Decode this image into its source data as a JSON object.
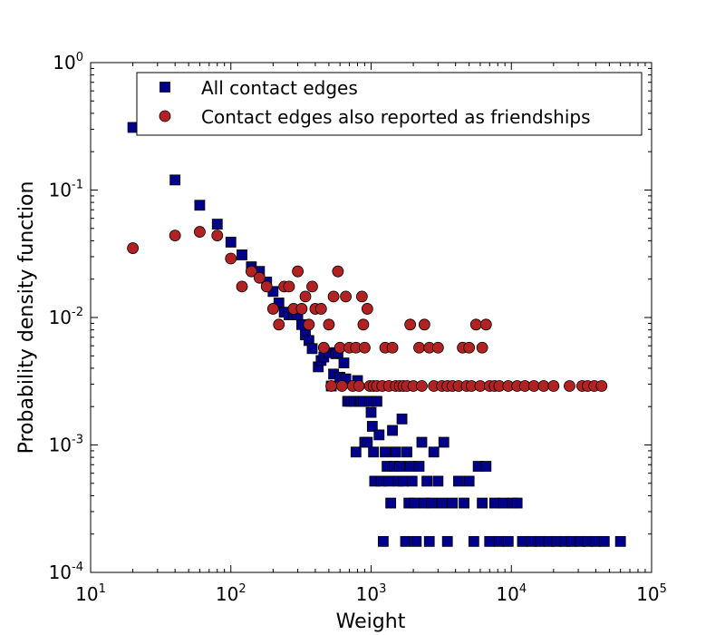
{
  "chart_data": {
    "type": "scatter",
    "title": "",
    "xlabel": "Weight",
    "ylabel": "Probability density function",
    "xscale": "log",
    "yscale": "log",
    "xlim": [
      10,
      100000
    ],
    "ylim": [
      0.0001,
      1
    ],
    "grid": false,
    "legend_position": "top",
    "x_ticks": [
      {
        "base": "10",
        "exp": "1"
      },
      {
        "base": "10",
        "exp": "2"
      },
      {
        "base": "10",
        "exp": "3"
      },
      {
        "base": "10",
        "exp": "4"
      },
      {
        "base": "10",
        "exp": "5"
      }
    ],
    "y_ticks": [
      {
        "base": "10",
        "exp": "-4"
      },
      {
        "base": "10",
        "exp": "-3"
      },
      {
        "base": "10",
        "exp": "-2"
      },
      {
        "base": "10",
        "exp": "-1"
      },
      {
        "base": "10",
        "exp": "0"
      }
    ],
    "series": [
      {
        "name": "All contact edges",
        "marker": "square",
        "color": "#00008b",
        "points": [
          [
            20,
            0.31
          ],
          [
            40,
            0.12
          ],
          [
            60,
            0.076
          ],
          [
            80,
            0.054
          ],
          [
            100,
            0.039
          ],
          [
            120,
            0.031
          ],
          [
            140,
            0.025
          ],
          [
            160,
            0.023
          ],
          [
            180,
            0.019
          ],
          [
            200,
            0.016
          ],
          [
            220,
            0.013
          ],
          [
            240,
            0.011
          ],
          [
            260,
            0.0105
          ],
          [
            280,
            0.0105
          ],
          [
            300,
            0.0105
          ],
          [
            320,
            0.0088
          ],
          [
            340,
            0.0073
          ],
          [
            360,
            0.0066
          ],
          [
            380,
            0.0057
          ],
          [
            420,
            0.0041
          ],
          [
            440,
            0.0046
          ],
          [
            460,
            0.0049
          ],
          [
            500,
            0.0053
          ],
          [
            520,
            0.0029
          ],
          [
            540,
            0.0036
          ],
          [
            560,
            0.0052
          ],
          [
            580,
            0.0053
          ],
          [
            600,
            0.0034
          ],
          [
            640,
            0.0044
          ],
          [
            660,
            0.0033
          ],
          [
            680,
            0.0022
          ],
          [
            720,
            0.0022
          ],
          [
            760,
            0.0022
          ],
          [
            780,
            0.00088
          ],
          [
            800,
            0.0032
          ],
          [
            820,
            0.0022
          ],
          [
            840,
            0.0022
          ],
          [
            880,
            0.0022
          ],
          [
            900,
            0.00105
          ],
          [
            940,
            0.00105
          ],
          [
            980,
            0.0022
          ],
          [
            1000,
            0.0018
          ],
          [
            1020,
            0.0014
          ],
          [
            1040,
            0.00088
          ],
          [
            1060,
            0.00052
          ],
          [
            1100,
            0.0022
          ],
          [
            1140,
            0.0012
          ],
          [
            1180,
            0.00052
          ],
          [
            1220,
            0.000175
          ],
          [
            1260,
            0.00088
          ],
          [
            1300,
            0.00068
          ],
          [
            1340,
            0.00052
          ],
          [
            1380,
            0.00035
          ],
          [
            1420,
            0.0013
          ],
          [
            1460,
            0.00068
          ],
          [
            1500,
            0.00088
          ],
          [
            1560,
            0.00052
          ],
          [
            1600,
            0.00068
          ],
          [
            1660,
            0.0016
          ],
          [
            1700,
            0.00052
          ],
          [
            1760,
            0.000175
          ],
          [
            1800,
            0.00088
          ],
          [
            1860,
            0.00035
          ],
          [
            1900,
            0.00068
          ],
          [
            1960,
            0.00052
          ],
          [
            2040,
            0.00035
          ],
          [
            2100,
            0.000175
          ],
          [
            2200,
            0.00068
          ],
          [
            2300,
            0.00105
          ],
          [
            2400,
            0.00035
          ],
          [
            2500,
            0.00052
          ],
          [
            2600,
            0.000175
          ],
          [
            2700,
            0.00035
          ],
          [
            2800,
            0.00088
          ],
          [
            3000,
            0.00052
          ],
          [
            3200,
            0.00035
          ],
          [
            3300,
            0.00105
          ],
          [
            3500,
            0.000175
          ],
          [
            3800,
            0.00035
          ],
          [
            4200,
            0.00052
          ],
          [
            4600,
            0.00035
          ],
          [
            5000,
            0.00052
          ],
          [
            5400,
            0.000175
          ],
          [
            5800,
            0.00068
          ],
          [
            6200,
            0.00035
          ],
          [
            6600,
            0.00068
          ],
          [
            7000,
            0.000175
          ],
          [
            7600,
            0.00035
          ],
          [
            8200,
            0.000175
          ],
          [
            8800,
            0.00035
          ],
          [
            9500,
            0.000175
          ],
          [
            10200,
            0.00035
          ],
          [
            11000,
            0.00035
          ],
          [
            12000,
            0.000175
          ],
          [
            14000,
            0.000175
          ],
          [
            16000,
            0.000175
          ],
          [
            18500,
            0.000175
          ],
          [
            21000,
            0.000175
          ],
          [
            24000,
            0.000175
          ],
          [
            27000,
            0.000175
          ],
          [
            31000,
            0.000175
          ],
          [
            35000,
            0.000175
          ],
          [
            40000,
            0.000175
          ],
          [
            46000,
            0.000175
          ],
          [
            60000,
            0.000175
          ]
        ]
      },
      {
        "name": "Contact edges also reported as friendships",
        "marker": "circle",
        "color": "#b22222",
        "points": [
          [
            20,
            0.035
          ],
          [
            40,
            0.044
          ],
          [
            60,
            0.047
          ],
          [
            80,
            0.044
          ],
          [
            100,
            0.029
          ],
          [
            120,
            0.0175
          ],
          [
            140,
            0.023
          ],
          [
            160,
            0.0205
          ],
          [
            180,
            0.0175
          ],
          [
            200,
            0.0117
          ],
          [
            220,
            0.0088
          ],
          [
            240,
            0.0175
          ],
          [
            260,
            0.0175
          ],
          [
            280,
            0.0117
          ],
          [
            300,
            0.023
          ],
          [
            320,
            0.0117
          ],
          [
            340,
            0.0146
          ],
          [
            360,
            0.0088
          ],
          [
            380,
            0.0175
          ],
          [
            400,
            0.0117
          ],
          [
            440,
            0.0117
          ],
          [
            460,
            0.0058
          ],
          [
            500,
            0.0088
          ],
          [
            520,
            0.0029
          ],
          [
            540,
            0.0146
          ],
          [
            580,
            0.023
          ],
          [
            600,
            0.0058
          ],
          [
            620,
            0.0029
          ],
          [
            660,
            0.0146
          ],
          [
            700,
            0.0058
          ],
          [
            740,
            0.0029
          ],
          [
            780,
            0.0058
          ],
          [
            820,
            0.0029
          ],
          [
            860,
            0.0146
          ],
          [
            880,
            0.0088
          ],
          [
            900,
            0.0058
          ],
          [
            940,
            0.0117
          ],
          [
            980,
            0.0029
          ],
          [
            1040,
            0.0029
          ],
          [
            1100,
            0.0029
          ],
          [
            1200,
            0.0029
          ],
          [
            1260,
            0.0058
          ],
          [
            1340,
            0.0029
          ],
          [
            1420,
            0.0058
          ],
          [
            1500,
            0.0029
          ],
          [
            1600,
            0.0029
          ],
          [
            1700,
            0.0029
          ],
          [
            1800,
            0.0029
          ],
          [
            1900,
            0.0088
          ],
          [
            2000,
            0.0029
          ],
          [
            2200,
            0.0058
          ],
          [
            2300,
            0.0029
          ],
          [
            2400,
            0.0088
          ],
          [
            2600,
            0.0058
          ],
          [
            2800,
            0.0029
          ],
          [
            3000,
            0.0058
          ],
          [
            3200,
            0.0029
          ],
          [
            3500,
            0.0029
          ],
          [
            3800,
            0.0029
          ],
          [
            4200,
            0.0029
          ],
          [
            4500,
            0.0058
          ],
          [
            4800,
            0.0029
          ],
          [
            5000,
            0.0058
          ],
          [
            5200,
            0.0029
          ],
          [
            5600,
            0.0088
          ],
          [
            6000,
            0.0029
          ],
          [
            6200,
            0.0058
          ],
          [
            6600,
            0.0088
          ],
          [
            7000,
            0.0029
          ],
          [
            7600,
            0.0029
          ],
          [
            8200,
            0.0029
          ],
          [
            9500,
            0.0029
          ],
          [
            11000,
            0.0029
          ],
          [
            12500,
            0.0029
          ],
          [
            14500,
            0.0029
          ],
          [
            17000,
            0.0029
          ],
          [
            20000,
            0.0029
          ],
          [
            26000,
            0.0029
          ],
          [
            32000,
            0.0029
          ],
          [
            35000,
            0.0029
          ],
          [
            39000,
            0.0029
          ],
          [
            44000,
            0.0029
          ]
        ]
      }
    ]
  }
}
